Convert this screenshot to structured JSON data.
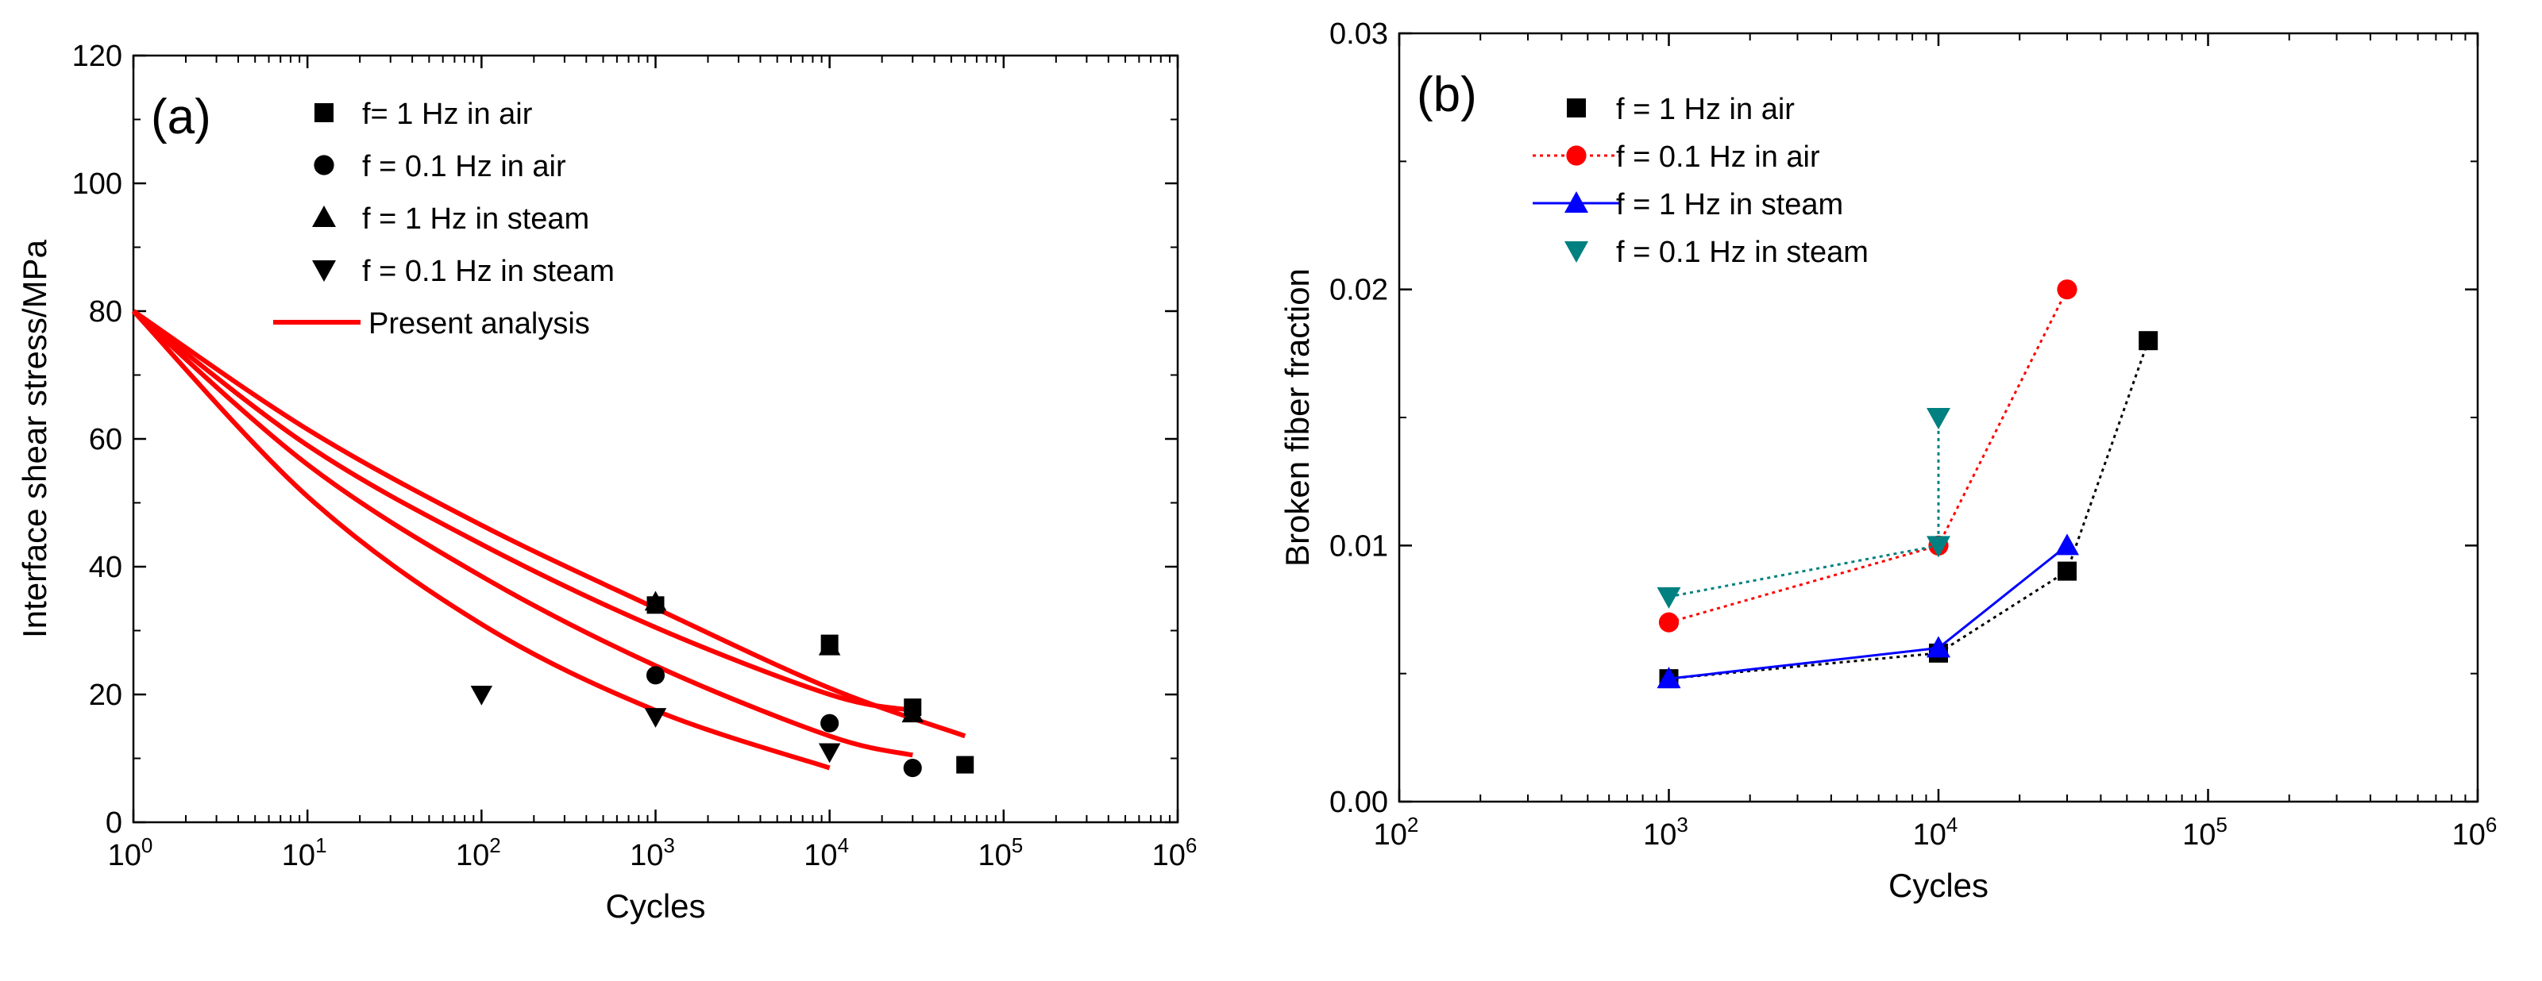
{
  "chart_data": [
    {
      "type": "scatter",
      "panel_label": "(a)",
      "title": "",
      "xlabel": "Cycles",
      "ylabel": "Interface shear stress/MPa",
      "xscale": "log",
      "xlim": [
        1,
        1000000
      ],
      "ylim": [
        0,
        120
      ],
      "x_tick_labels": [
        {
          "base": "10",
          "exp": "0"
        },
        {
          "base": "10",
          "exp": "1"
        },
        {
          "base": "10",
          "exp": "2"
        },
        {
          "base": "10",
          "exp": "3"
        },
        {
          "base": "10",
          "exp": "4"
        },
        {
          "base": "10",
          "exp": "5"
        },
        {
          "base": "10",
          "exp": "6"
        }
      ],
      "y_tick_labels": [
        "0",
        "20",
        "40",
        "60",
        "80",
        "100",
        "120"
      ],
      "legend_position": "top-left",
      "series": [
        {
          "name": "f= 1 Hz in air",
          "marker": "square",
          "color": "#000000",
          "x": [
            1000,
            10000,
            30000,
            60000
          ],
          "y": [
            34,
            28,
            18,
            9
          ]
        },
        {
          "name": "f = 0.1 Hz in air",
          "marker": "circle",
          "color": "#000000",
          "x": [
            1000,
            10000,
            30000
          ],
          "y": [
            23,
            15.5,
            8.5
          ]
        },
        {
          "name": "f = 1 Hz in steam",
          "marker": "triangle-up",
          "color": "#000000",
          "x": [
            1000,
            10000,
            30000
          ],
          "y": [
            34.5,
            27.5,
            17
          ]
        },
        {
          "name": "f = 0.1 Hz in steam",
          "marker": "triangle-down",
          "color": "#000000",
          "x": [
            100,
            1000,
            10000
          ],
          "y": [
            20,
            16.5,
            11
          ]
        }
      ],
      "curves": [
        {
          "name": "Present analysis",
          "color": "#ff0000",
          "x": [
            1,
            10,
            100,
            1000,
            10000,
            60000
          ],
          "y": [
            80,
            61.5,
            46.5,
            33.5,
            21,
            13.5
          ]
        },
        {
          "name": "Present analysis",
          "color": "#ff0000",
          "x": [
            1,
            10,
            100,
            1000,
            10000,
            30000
          ],
          "y": [
            80,
            59,
            43.5,
            30.5,
            20,
            17.5
          ]
        },
        {
          "name": "Present analysis",
          "color": "#ff0000",
          "x": [
            1,
            10,
            100,
            1000,
            10000,
            30000
          ],
          "y": [
            80,
            56,
            38.5,
            24.5,
            13.5,
            10.5
          ]
        },
        {
          "name": "Present analysis",
          "color": "#ff0000",
          "x": [
            1,
            10,
            100,
            1000,
            10000
          ],
          "y": [
            80,
            51,
            31,
            17.5,
            8.5
          ]
        }
      ],
      "curve_legend_label": "Present analysis"
    },
    {
      "type": "line",
      "panel_label": "(b)",
      "title": "",
      "xlabel": "Cycles",
      "ylabel": "Broken fiber fraction",
      "xscale": "log",
      "xlim": [
        100,
        1000000
      ],
      "ylim": [
        0,
        0.03
      ],
      "x_tick_labels": [
        {
          "base": "10",
          "exp": "2"
        },
        {
          "base": "10",
          "exp": "3"
        },
        {
          "base": "10",
          "exp": "4"
        },
        {
          "base": "10",
          "exp": "5"
        },
        {
          "base": "10",
          "exp": "6"
        }
      ],
      "y_tick_labels": [
        "0.00",
        "0.01",
        "0.02",
        "0.03"
      ],
      "legend_position": "top-left",
      "series": [
        {
          "name": "f = 1 Hz in air",
          "marker": "square",
          "color": "#000000",
          "line": "dotted",
          "x": [
            1000,
            10000,
            30000,
            60000
          ],
          "y": [
            0.0048,
            0.0058,
            0.009,
            0.018
          ]
        },
        {
          "name": "f = 0.1 Hz in air",
          "marker": "circle",
          "color": "#ff0000",
          "line": "dotted",
          "x": [
            1000,
            10000,
            30000
          ],
          "y": [
            0.007,
            0.01,
            0.02
          ]
        },
        {
          "name": "f = 1  Hz in steam",
          "marker": "triangle-up",
          "color": "#0000ff",
          "line": "solid",
          "x": [
            1000,
            10000,
            30000
          ],
          "y": [
            0.0048,
            0.006,
            0.01
          ]
        },
        {
          "name": "f = 0.1 Hz in steam",
          "marker": "triangle-down",
          "color": "#008080",
          "line": "dotted",
          "x": [
            1000,
            10000,
            10000
          ],
          "y": [
            0.008,
            0.01,
            0.015
          ]
        }
      ]
    }
  ]
}
